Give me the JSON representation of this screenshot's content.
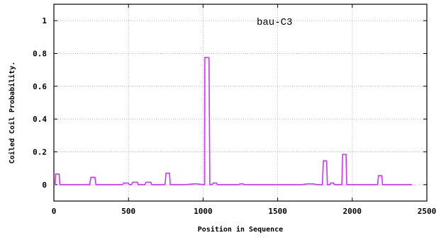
{
  "chart_data": {
    "type": "line",
    "xlabel": "Position in Sequence",
    "ylabel": "Coiled Coil Probability.",
    "xlim": [
      0,
      2500
    ],
    "ylim": [
      -0.1,
      1.1
    ],
    "xticks": [
      0,
      500,
      1000,
      1500,
      2000,
      2500
    ],
    "yticks": [
      0,
      0.2,
      0.4,
      0.6,
      0.8,
      1
    ],
    "ytick_labels": [
      "0",
      "0.2",
      "0.4",
      "0.6",
      "0.8",
      "1"
    ],
    "grid": true,
    "color": "#cc33ff",
    "series": [
      {
        "name": "bau-C3",
        "x": [
          0,
          8,
          12,
          35,
          40,
          240,
          248,
          275,
          282,
          460,
          468,
          500,
          505,
          520,
          528,
          560,
          565,
          610,
          618,
          650,
          655,
          745,
          752,
          775,
          780,
          880,
          940,
          960,
          1000,
          1010,
          1012,
          1040,
          1045,
          1060,
          1068,
          1090,
          1095,
          1240,
          1248,
          1270,
          1275,
          1660,
          1700,
          1740,
          1760,
          1800,
          1806,
          1828,
          1833,
          1850,
          1855,
          1875,
          1880,
          1930,
          1936,
          1958,
          1963,
          2170,
          2176,
          2198,
          2203,
          2400
        ],
        "y": [
          0,
          0,
          0.065,
          0.065,
          0,
          0,
          0.045,
          0.045,
          0,
          0,
          0.01,
          0.01,
          0,
          0,
          0.015,
          0.015,
          0,
          0,
          0.015,
          0.015,
          0,
          0,
          0.07,
          0.07,
          0,
          0,
          0.005,
          0.005,
          0,
          0,
          0.775,
          0.775,
          0,
          0,
          0.01,
          0.01,
          0,
          0,
          0.005,
          0.005,
          0,
          0,
          0.005,
          0.005,
          0,
          0,
          0.145,
          0.145,
          0,
          0,
          0.01,
          0.01,
          0,
          0,
          0.185,
          0.185,
          0,
          0,
          0.055,
          0.055,
          0,
          0
        ]
      }
    ],
    "legend": {
      "label": "bau-C3",
      "placement": "top-right"
    }
  }
}
